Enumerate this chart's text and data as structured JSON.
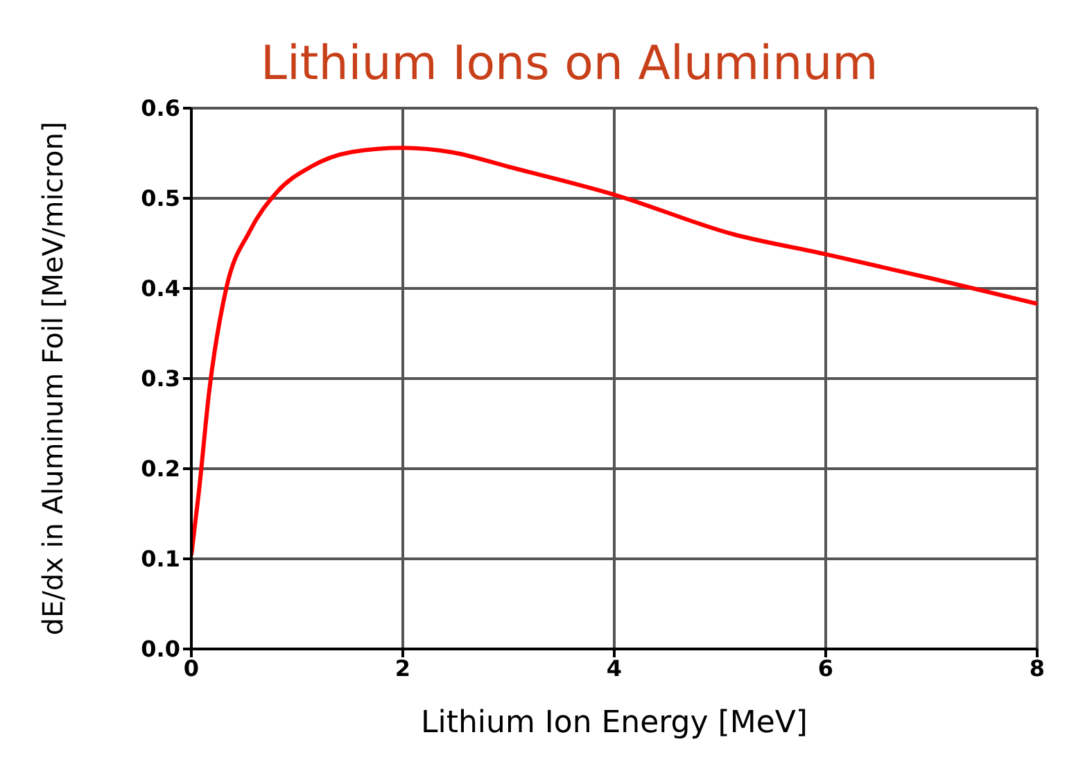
{
  "chart_data": {
    "type": "line",
    "title": "Lithium Ions on Aluminum",
    "xlabel": "Lithium Ion Energy [MeV]",
    "ylabel": "dE/dx in Aluminum Foil [MeV/micron]",
    "x": [
      0,
      0.07,
      0.17,
      0.33,
      0.55,
      0.81,
      1.13,
      1.5,
      2.0,
      2.47,
      3.0,
      4.0,
      5.13,
      6.0,
      7.04,
      8.0
    ],
    "series": [
      {
        "color": "#ff0000",
        "values": [
          0.104,
          0.173,
          0.287,
          0.4,
          0.463,
          0.507,
          0.535,
          0.551,
          0.556,
          0.551,
          0.535,
          0.504,
          0.46,
          0.438,
          0.41,
          0.383
        ]
      }
    ],
    "xlim": [
      0,
      8
    ],
    "xticks": [
      0,
      2,
      4,
      6,
      8
    ],
    "ylim": [
      0,
      0.6
    ],
    "yticks": [
      {
        "value": 0,
        "label": "0.0"
      },
      {
        "value": 0.1,
        "label": "0.1"
      },
      {
        "value": 0.2,
        "label": "0.2"
      },
      {
        "value": 0.3,
        "label": "0.3"
      },
      {
        "value": 0.4,
        "label": "0.4"
      },
      {
        "value": 0.5,
        "label": "0.5"
      },
      {
        "value": 0.6,
        "label": "0.6"
      }
    ],
    "grid": true,
    "marker": "none",
    "line_style": "solid"
  }
}
